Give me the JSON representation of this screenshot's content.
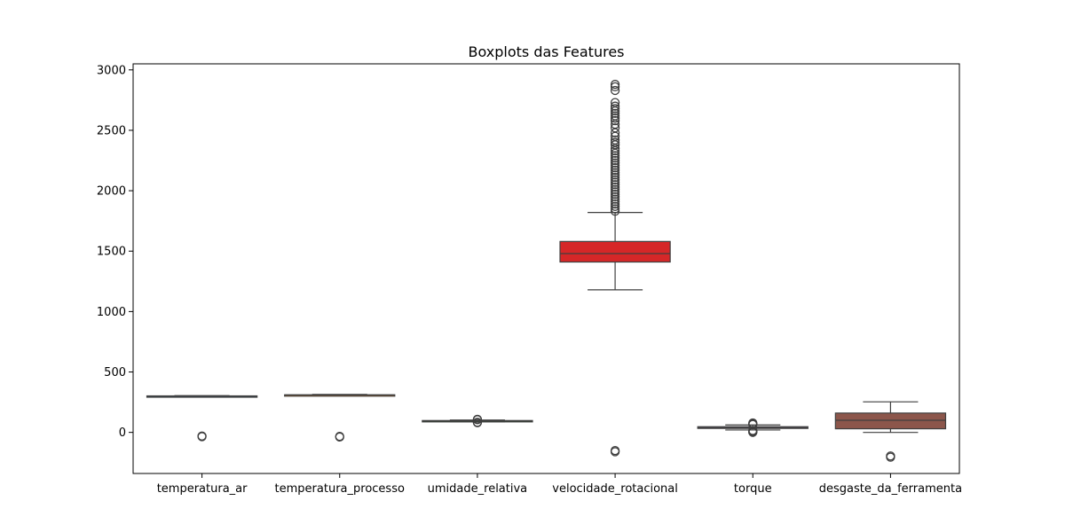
{
  "chart_data": {
    "type": "boxplot",
    "title": "Boxplots das Features",
    "xlabel": "",
    "ylabel": "",
    "ylim": [
      -340,
      3050
    ],
    "yticks": [
      0,
      500,
      1000,
      1500,
      2000,
      2500,
      3000
    ],
    "grid": false,
    "categories": [
      "temperatura_ar",
      "temperatura_processo",
      "umidade_relativa",
      "velocidade_rotacional",
      "torque",
      "desgaste_da_ferramenta"
    ],
    "series": [
      {
        "name": "temperatura_ar",
        "color": "#1f77b4",
        "whisker_low": 296,
        "q1": 298,
        "median": 300,
        "q3": 302,
        "whisker_high": 304,
        "outliers": [
          -35,
          -30
        ]
      },
      {
        "name": "temperatura_processo",
        "color": "#ff7f0e",
        "whisker_low": 306,
        "q1": 308,
        "median": 310,
        "q3": 311,
        "whisker_high": 314,
        "outliers": [
          -38,
          -33
        ]
      },
      {
        "name": "umidade_relativa",
        "color": "#2ca02c",
        "whisker_low": 88,
        "q1": 92,
        "median": 95,
        "q3": 98,
        "whisker_high": 102,
        "outliers": [
          80,
          84,
          105,
          108
        ]
      },
      {
        "name": "velocidade_rotacional",
        "color": "#d62728",
        "whisker_low": 1180,
        "q1": 1410,
        "median": 1480,
        "q3": 1580,
        "whisker_high": 1820,
        "outliers": [
          -160,
          -150,
          1830,
          1850,
          1870,
          1890,
          1910,
          1930,
          1950,
          1970,
          1990,
          2010,
          2030,
          2050,
          2070,
          2090,
          2110,
          2130,
          2150,
          2170,
          2190,
          2210,
          2230,
          2250,
          2270,
          2290,
          2310,
          2330,
          2350,
          2380,
          2400,
          2420,
          2450,
          2480,
          2520,
          2550,
          2580,
          2600,
          2620,
          2640,
          2660,
          2680,
          2700,
          2730,
          2830,
          2860,
          2880
        ]
      },
      {
        "name": "torque",
        "color": "#9467bd",
        "whisker_low": 20,
        "q1": 33,
        "median": 40,
        "q3": 47,
        "whisker_high": 62,
        "outliers": [
          0,
          4,
          8,
          12,
          16,
          66,
          70,
          74,
          78
        ]
      },
      {
        "name": "desgaste_da_ferramenta",
        "color": "#8c564b",
        "whisker_low": 0,
        "q1": 30,
        "median": 100,
        "q3": 160,
        "whisker_high": 253,
        "outliers": [
          -205,
          -195
        ]
      }
    ]
  }
}
